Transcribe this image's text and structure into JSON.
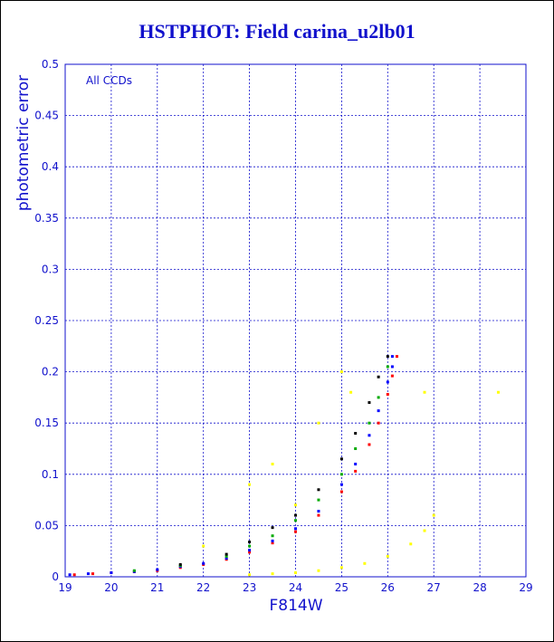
{
  "title": "HSTPHOT: Field carina_u2lb01",
  "chart_data": {
    "type": "scatter",
    "title": "HSTPHOT: Field carina_u2lb01",
    "xlabel": "F814W",
    "ylabel": "photometric error",
    "annotation": "All CCDs",
    "xlim": [
      19,
      29
    ],
    "ylim": [
      0,
      0.5
    ],
    "xticks": [
      "19",
      "20",
      "21",
      "22",
      "23",
      "24",
      "25",
      "26",
      "27",
      "28",
      "29"
    ],
    "yticks": [
      "0",
      "0.05",
      "0.1",
      "0.15",
      "0.2",
      "0.25",
      "0.3",
      "0.35",
      "0.4",
      "0.45",
      "0.5"
    ],
    "grid": true,
    "gridColor": "#1111cc",
    "textColor": "#1111cc",
    "series": [
      {
        "color": "#ff0000",
        "points": [
          [
            19.2,
            0.002
          ],
          [
            19.6,
            0.003
          ],
          [
            20.0,
            0.004
          ],
          [
            20.5,
            0.005
          ],
          [
            21.0,
            0.006
          ],
          [
            21.5,
            0.009
          ],
          [
            22.0,
            0.012
          ],
          [
            22.5,
            0.017
          ],
          [
            23.0,
            0.024
          ],
          [
            23.5,
            0.033
          ],
          [
            24.0,
            0.044
          ],
          [
            24.5,
            0.06
          ],
          [
            25.0,
            0.083
          ],
          [
            25.3,
            0.103
          ],
          [
            25.6,
            0.129
          ],
          [
            25.8,
            0.15
          ],
          [
            26.0,
            0.178
          ],
          [
            26.1,
            0.196
          ],
          [
            26.2,
            0.215
          ]
        ]
      },
      {
        "color": "#0000ff",
        "points": [
          [
            19.1,
            0.002
          ],
          [
            19.5,
            0.003
          ],
          [
            20.0,
            0.004
          ],
          [
            20.5,
            0.005
          ],
          [
            21.0,
            0.007
          ],
          [
            21.5,
            0.01
          ],
          [
            22.0,
            0.013
          ],
          [
            22.5,
            0.018
          ],
          [
            23.0,
            0.026
          ],
          [
            23.5,
            0.035
          ],
          [
            24.0,
            0.047
          ],
          [
            24.5,
            0.064
          ],
          [
            25.0,
            0.09
          ],
          [
            25.3,
            0.11
          ],
          [
            25.6,
            0.138
          ],
          [
            25.8,
            0.162
          ],
          [
            26.0,
            0.19
          ],
          [
            26.1,
            0.205
          ],
          [
            26.1,
            0.215
          ]
        ]
      },
      {
        "color": "#00aa00",
        "points": [
          [
            20.5,
            0.006
          ],
          [
            21.5,
            0.011
          ],
          [
            22.5,
            0.02
          ],
          [
            23.0,
            0.03
          ],
          [
            23.5,
            0.04
          ],
          [
            24.0,
            0.055
          ],
          [
            24.5,
            0.075
          ],
          [
            25.0,
            0.1
          ],
          [
            25.3,
            0.125
          ],
          [
            25.6,
            0.15
          ],
          [
            25.8,
            0.175
          ],
          [
            26.0,
            0.205
          ]
        ]
      },
      {
        "color": "#000000",
        "points": [
          [
            21.5,
            0.012
          ],
          [
            22.5,
            0.022
          ],
          [
            23.0,
            0.034
          ],
          [
            23.5,
            0.048
          ],
          [
            24.0,
            0.06
          ],
          [
            24.5,
            0.085
          ],
          [
            25.0,
            0.115
          ],
          [
            25.3,
            0.14
          ],
          [
            25.6,
            0.17
          ],
          [
            25.8,
            0.195
          ],
          [
            26.0,
            0.215
          ]
        ]
      },
      {
        "color": "#ffff00",
        "points": [
          [
            23.0,
            0.002
          ],
          [
            23.5,
            0.003
          ],
          [
            24.0,
            0.004
          ],
          [
            24.5,
            0.006
          ],
          [
            25.0,
            0.009
          ],
          [
            25.5,
            0.013
          ],
          [
            26.0,
            0.02
          ],
          [
            26.5,
            0.032
          ],
          [
            26.8,
            0.045
          ],
          [
            27.0,
            0.06
          ],
          [
            23.0,
            0.09
          ],
          [
            23.5,
            0.11
          ],
          [
            24.0,
            0.07
          ],
          [
            24.5,
            0.15
          ],
          [
            25.0,
            0.2
          ],
          [
            25.2,
            0.18
          ],
          [
            22.0,
            0.03
          ],
          [
            26.8,
            0.18
          ],
          [
            28.4,
            0.18
          ]
        ]
      }
    ]
  }
}
